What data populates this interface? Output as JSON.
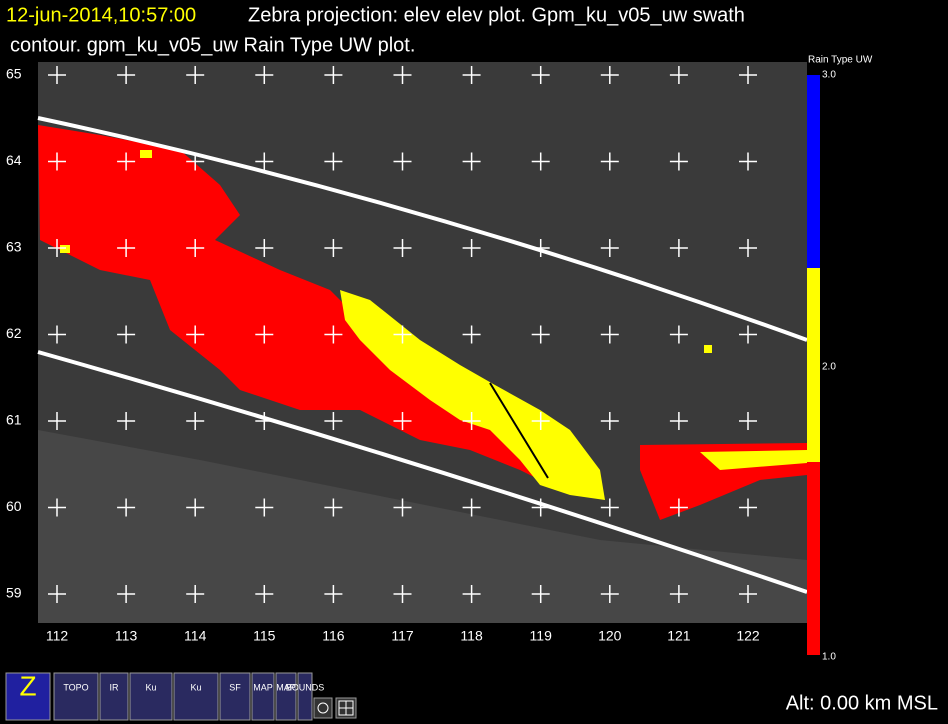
{
  "header": {
    "time": "12-jun-2014,10:57:00",
    "line1": "Zebra projection: elev elev  plot.  Gpm_ku_v05_uw swath",
    "line2": "contour.  gpm_ku_v05_uw Rain Type UW  plot."
  },
  "map": {
    "lat_ticks": [
      65,
      64,
      63,
      62,
      61,
      60,
      59
    ],
    "lon_ticks": [
      112,
      113,
      114,
      115,
      116,
      117,
      118,
      119,
      120,
      121,
      122
    ]
  },
  "colorbar": {
    "title": "Rain Type UW",
    "labels": [
      "3.0",
      "2.0",
      "1.0"
    ]
  },
  "toolbar": {
    "icons": [
      "Z",
      "TOPO",
      "IR",
      "Ku",
      "Ku",
      "SF",
      "MAP",
      "MAP",
      "BOUNDS"
    ]
  },
  "status": {
    "altitude": "Alt: 0.00 km MSL"
  }
}
